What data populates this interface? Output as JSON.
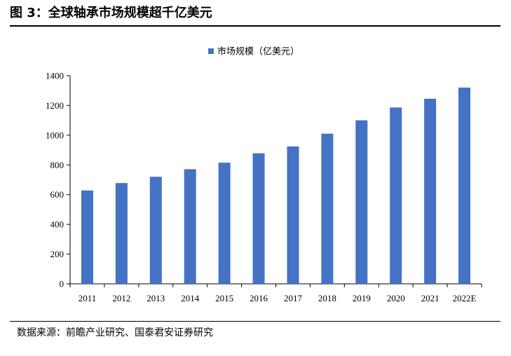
{
  "figure": {
    "title": "图 3：全球轴承市场规模超千亿美元",
    "source": "数据来源：前瞻产业研究、国泰君安证券研究"
  },
  "chart_data": {
    "type": "bar",
    "categories": [
      "2011",
      "2012",
      "2013",
      "2014",
      "2015",
      "2016",
      "2017",
      "2018",
      "2019",
      "2020",
      "2021",
      "2022E"
    ],
    "series": [
      {
        "name": "市场规模（亿美元）",
        "values": [
          628,
          678,
          720,
          771,
          815,
          878,
          924,
          1010,
          1100,
          1186,
          1245,
          1320
        ],
        "color": "#4472C4"
      }
    ],
    "ylim": [
      0,
      1400
    ],
    "yticks": [
      0,
      200,
      400,
      600,
      800,
      1000,
      1200,
      1400
    ],
    "grid": false,
    "legend": "top-center"
  }
}
